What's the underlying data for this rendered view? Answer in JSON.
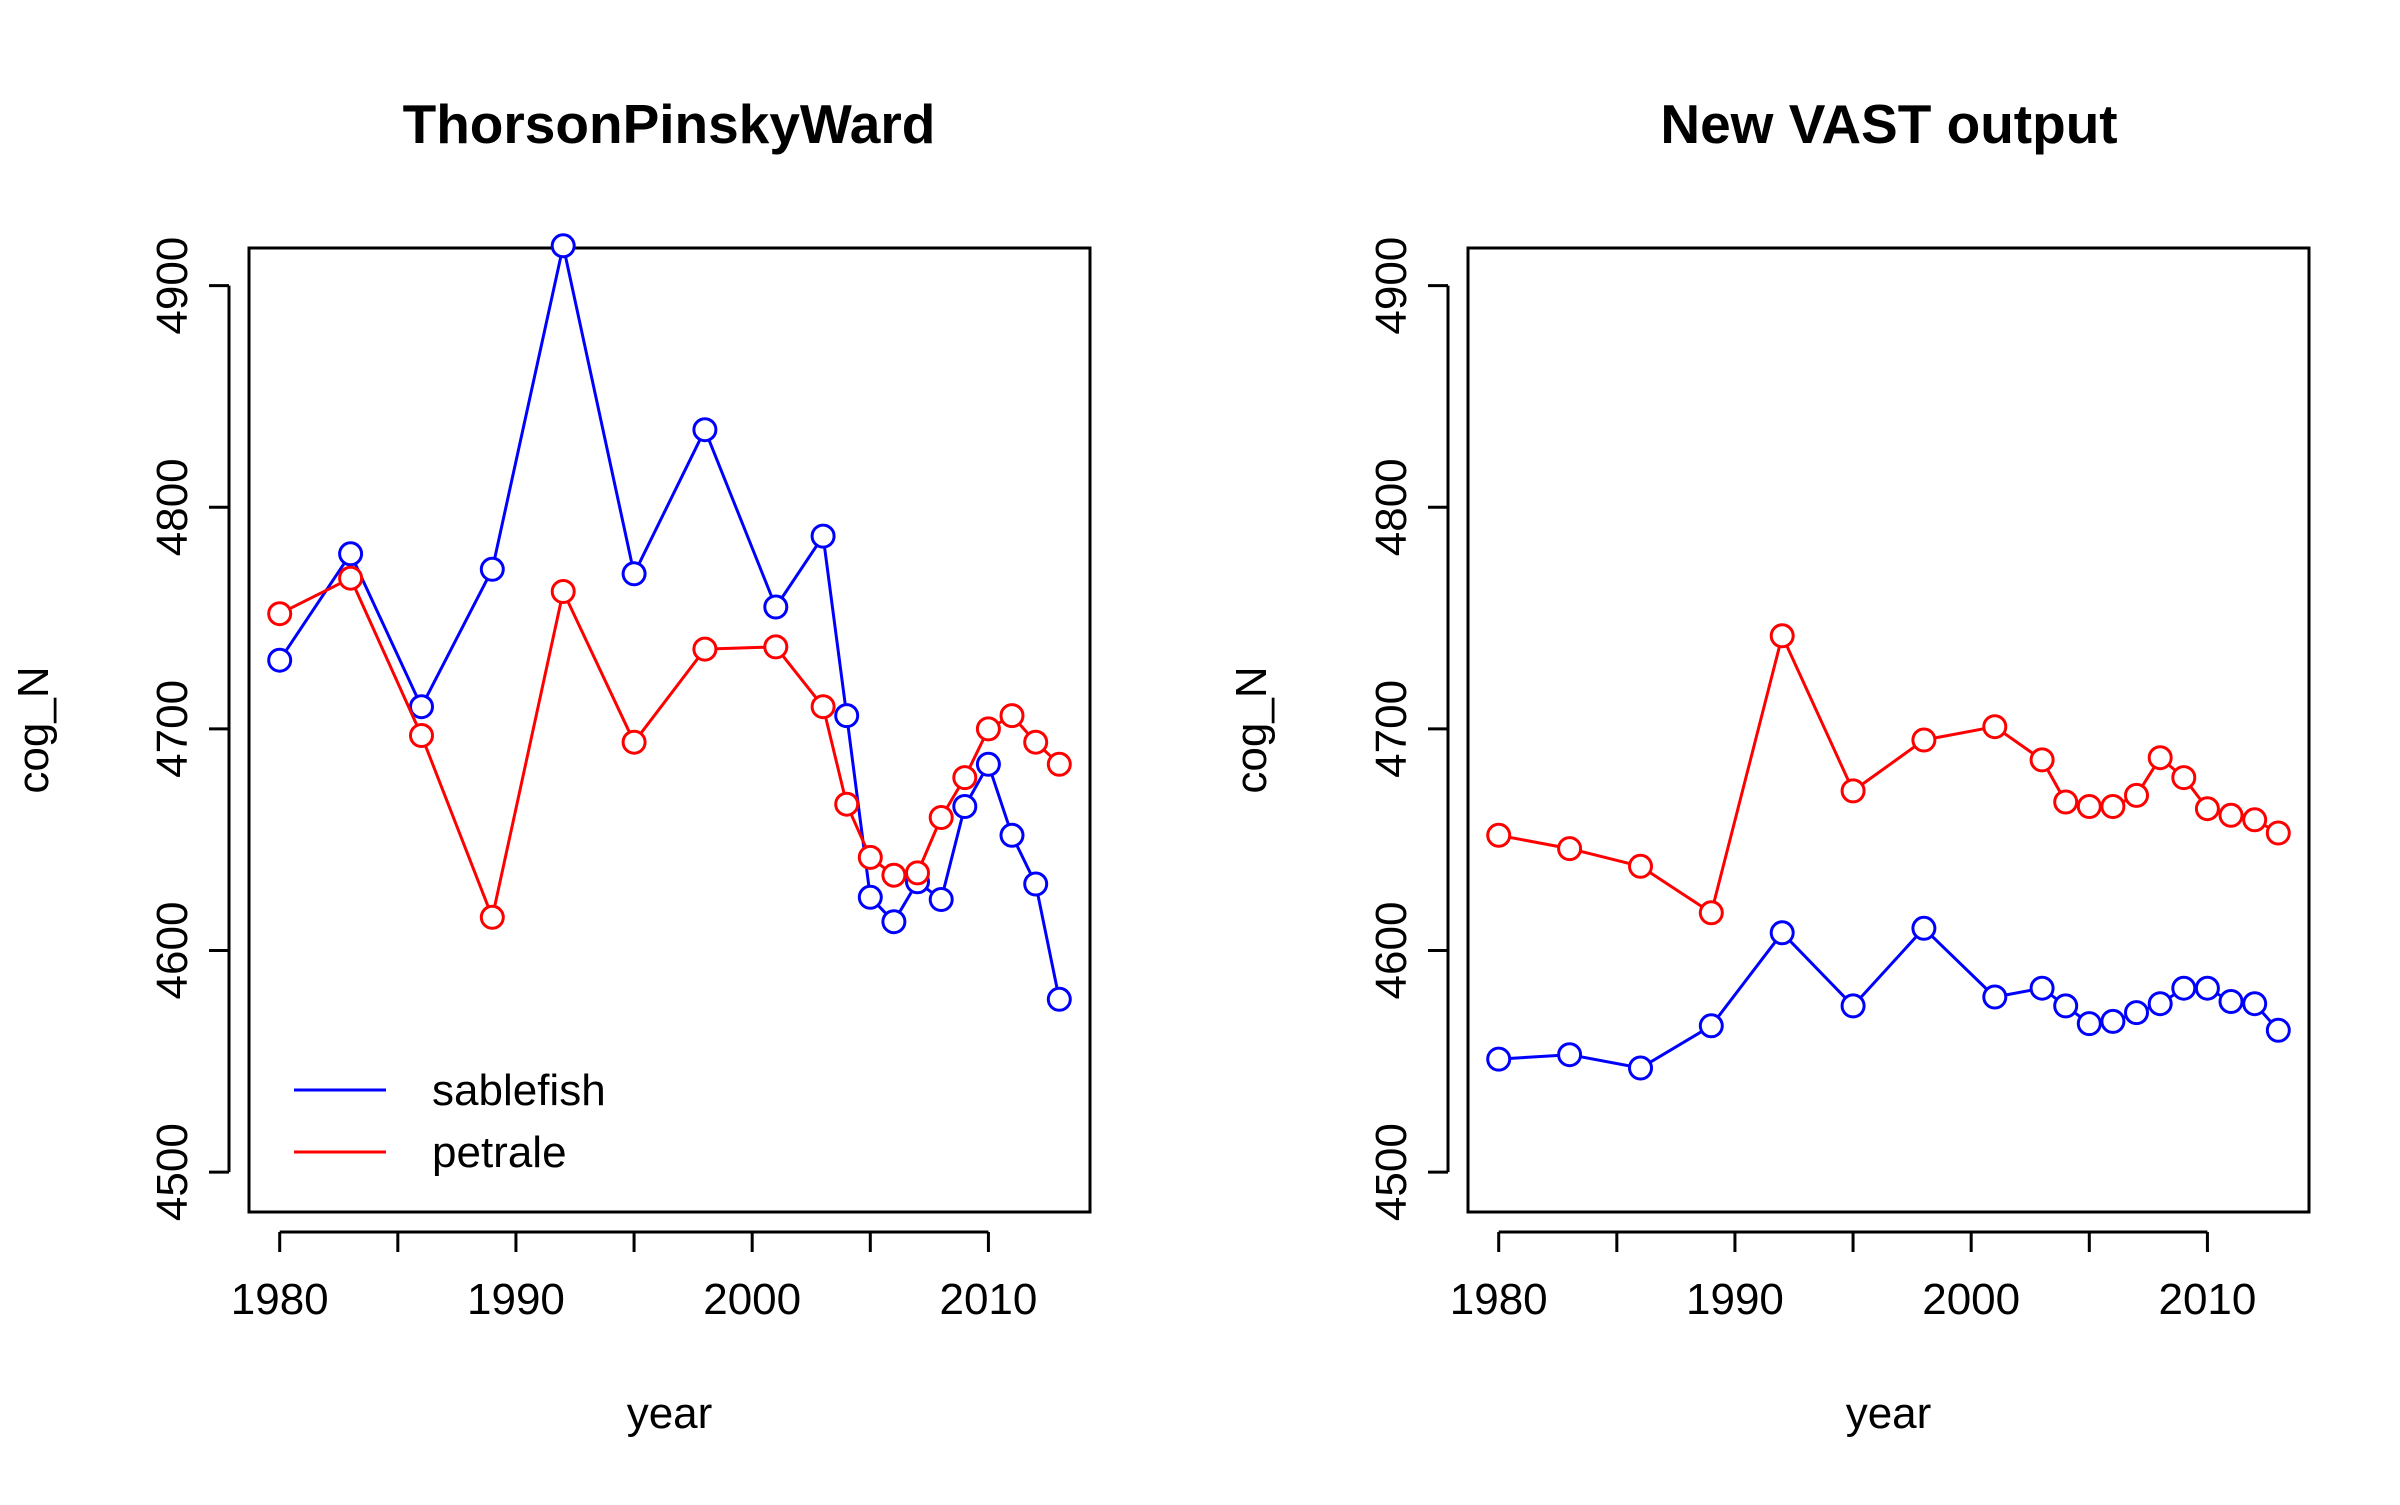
{
  "chart_data": [
    {
      "type": "line",
      "title": "ThorsonPinskyWard",
      "xlabel": "year",
      "ylabel": "cog_N",
      "xlim": [
        1978.7,
        2014.3
      ],
      "ylim": [
        4482,
        4917
      ],
      "xticks": [
        1980,
        1990,
        2000,
        2010
      ],
      "xtick_labels": [
        "1980",
        "1990",
        "2000",
        "2010"
      ],
      "xticks_minor": [
        1985,
        1995,
        2005
      ],
      "yticks": [
        4500,
        4600,
        4700,
        4800,
        4900
      ],
      "ytick_labels": [
        "4500",
        "4600",
        "4700",
        "4800",
        "4900"
      ],
      "markers": "open-circle",
      "legend": {
        "position": "bottom-left",
        "entries": [
          "sablefish",
          "petrale"
        ]
      },
      "x": [
        1980,
        1983,
        1986,
        1989,
        1992,
        1995,
        1998,
        2001,
        2003,
        2004,
        2005,
        2006,
        2007,
        2008,
        2009,
        2010,
        2011,
        2012,
        2013
      ],
      "series": [
        {
          "name": "sablefish",
          "color": "#0000ff",
          "values": [
            4731,
            4779,
            4710,
            4772,
            4918,
            4770,
            4835,
            4755,
            4787,
            4706,
            4624,
            4613,
            4631,
            4623,
            4665,
            4684,
            4652,
            4630,
            4578
          ]
        },
        {
          "name": "petrale",
          "color": "#ff0000",
          "values": [
            4752,
            4768,
            4697,
            4615,
            4762,
            4694,
            4736,
            4737,
            4710,
            4666,
            4642,
            4634,
            4635,
            4660,
            4678,
            4700,
            4706,
            4694,
            4684
          ]
        }
      ]
    },
    {
      "type": "line",
      "title": "New VAST output",
      "xlabel": "year",
      "ylabel": "cog_N",
      "xlim": [
        1978.7,
        2014.3
      ],
      "ylim": [
        4482,
        4917
      ],
      "xticks": [
        1980,
        1990,
        2000,
        2010
      ],
      "xtick_labels": [
        "1980",
        "1990",
        "2000",
        "2010"
      ],
      "xticks_minor": [
        1985,
        1995,
        2005
      ],
      "yticks": [
        4500,
        4600,
        4700,
        4800,
        4900
      ],
      "ytick_labels": [
        "4500",
        "4600",
        "4700",
        "4800",
        "4900"
      ],
      "markers": "open-circle",
      "x": [
        1980,
        1983,
        1986,
        1989,
        1992,
        1995,
        1998,
        2001,
        2003,
        2004,
        2005,
        2006,
        2007,
        2008,
        2009,
        2010,
        2011,
        2012,
        2013
      ],
      "series": [
        {
          "color": "#0000ff",
          "values": [
            4551,
            4553,
            4547,
            4566,
            4608,
            4575,
            4610,
            4579,
            4583,
            4575,
            4567,
            4568,
            4572,
            4576,
            4583,
            4583,
            4577,
            4576,
            4564
          ]
        },
        {
          "color": "#ff0000",
          "values": [
            4652,
            4646,
            4638,
            4617,
            4742,
            4672,
            4695,
            4701,
            4686,
            4667,
            4665,
            4665,
            4670,
            4687,
            4678,
            4664,
            4661,
            4659,
            4653
          ]
        }
      ]
    }
  ]
}
